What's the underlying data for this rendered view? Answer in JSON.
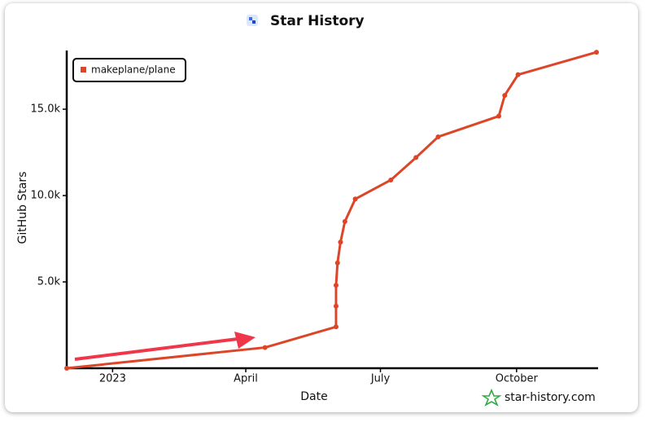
{
  "chart_data": {
    "type": "line",
    "title": "Star History",
    "x_label": "Date",
    "y_label": "GitHub Stars",
    "watermark": "star-history.com",
    "x": [
      "2022-12-01",
      "2023-04-14",
      "2023-06-01",
      "2023-06-01",
      "2023-06-01",
      "2023-06-02",
      "2023-06-04",
      "2023-06-07",
      "2023-06-14",
      "2023-07-08",
      "2023-07-25",
      "2023-08-09",
      "2023-09-19",
      "2023-09-23",
      "2023-10-02",
      "2023-11-24"
    ],
    "series": [
      {
        "name": "makeplane/plane",
        "color": "#dd4528",
        "values": [
          0,
          1200,
          2400,
          3600,
          4800,
          6100,
          7300,
          8500,
          9800,
          10900,
          12200,
          13400,
          14600,
          15800,
          17000,
          18300
        ]
      }
    ],
    "xlim": [
      "2022-12-01",
      "2023-11-24"
    ],
    "xticks": [
      {
        "value": "2023-01-01",
        "label": "2023"
      },
      {
        "value": "2023-04-01",
        "label": "April"
      },
      {
        "value": "2023-07-01",
        "label": "July"
      },
      {
        "value": "2023-10-01",
        "label": "October"
      }
    ],
    "ylim": [
      0,
      18400
    ],
    "yticks": [
      {
        "value": 5000,
        "label": "5.0k"
      },
      {
        "value": 10000,
        "label": "10.0k"
      },
      {
        "value": 15000,
        "label": "15.0k"
      }
    ],
    "legend": "top-left"
  }
}
